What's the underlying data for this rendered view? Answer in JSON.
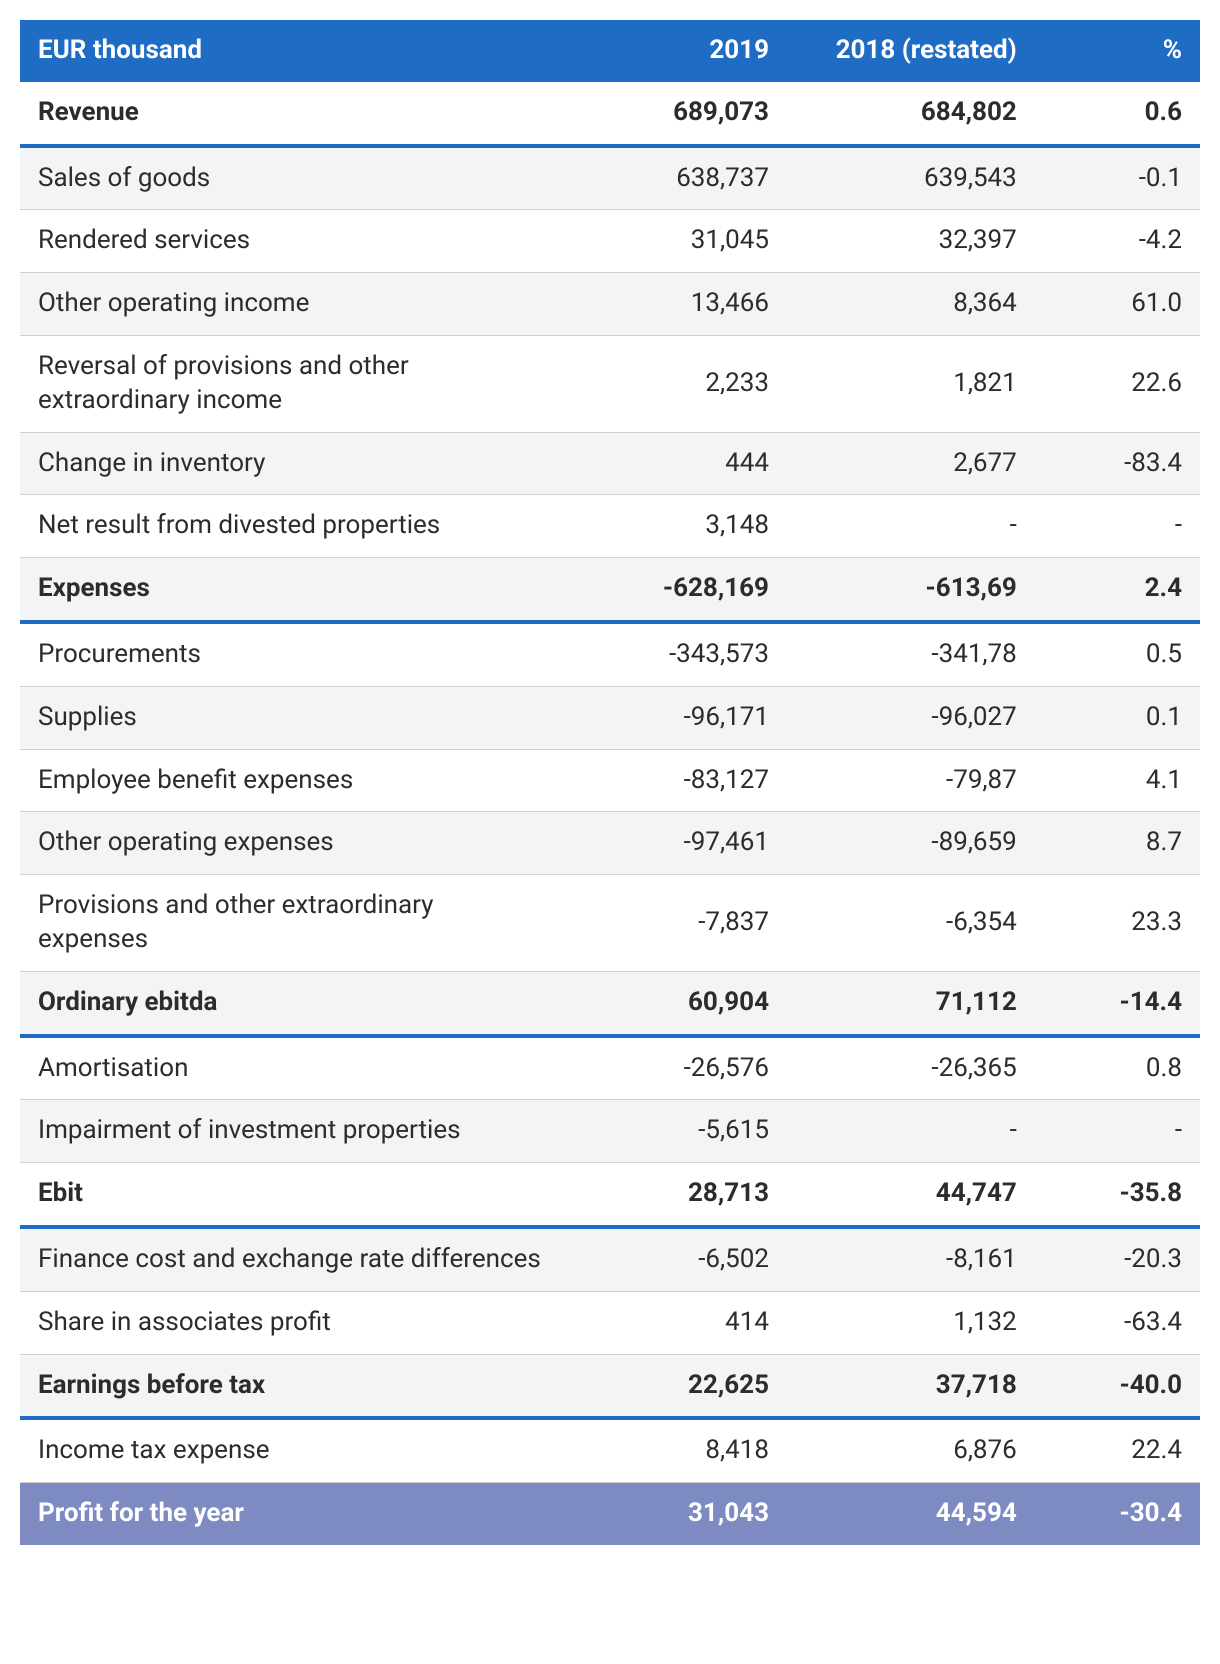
{
  "colors": {
    "header_bg": "#1f6cc4",
    "footer_bg": "#7d8bc2",
    "accent_border": "#1f6cc4",
    "row_border": "#d0d0d0",
    "zebra_bg": "#f4f4f4",
    "text": "#2c2c2c",
    "header_text": "#ffffff"
  },
  "columns": {
    "label": "EUR thousand",
    "v1": "2019",
    "v2": "2018 (restated)",
    "pct": "%"
  },
  "rows": [
    {
      "label": "Revenue",
      "v1": "689,073",
      "v2": "684,802",
      "pct": "0.6",
      "bold": true,
      "zebra": false,
      "border": "none"
    },
    {
      "label": "Sales of goods",
      "v1": "638,737",
      "v2": "639,543",
      "pct": "-0.1",
      "bold": false,
      "zebra": true,
      "border": "accent"
    },
    {
      "label": "Rendered services",
      "v1": "31,045",
      "v2": "32,397",
      "pct": "-4.2",
      "bold": false,
      "zebra": false,
      "border": "thin"
    },
    {
      "label": "Other operating income",
      "v1": "13,466",
      "v2": "8,364",
      "pct": "61.0",
      "bold": false,
      "zebra": true,
      "border": "thin"
    },
    {
      "label": "Reversal of provisions and other extraordinary income",
      "v1": "2,233",
      "v2": "1,821",
      "pct": "22.6",
      "bold": false,
      "zebra": false,
      "border": "thin"
    },
    {
      "label": "Change in inventory",
      "v1": "444",
      "v2": "2,677",
      "pct": "-83.4",
      "bold": false,
      "zebra": true,
      "border": "thin"
    },
    {
      "label": "Net result from divested properties",
      "v1": "3,148",
      "v2": "-",
      "pct": "-",
      "bold": false,
      "zebra": false,
      "border": "thin"
    },
    {
      "label": "Expenses",
      "v1": "-628,169",
      "v2": "-613,69",
      "pct": "2.4",
      "bold": true,
      "zebra": true,
      "border": "thin"
    },
    {
      "label": "Procurements",
      "v1": "-343,573",
      "v2": "-341,78",
      "pct": "0.5",
      "bold": false,
      "zebra": false,
      "border": "accent"
    },
    {
      "label": "Supplies",
      "v1": "-96,171",
      "v2": "-96,027",
      "pct": "0.1",
      "bold": false,
      "zebra": true,
      "border": "thin"
    },
    {
      "label": "Employee benefit expenses",
      "v1": "-83,127",
      "v2": "-79,87",
      "pct": "4.1",
      "bold": false,
      "zebra": false,
      "border": "thin"
    },
    {
      "label": "Other operating expenses",
      "v1": "-97,461",
      "v2": "-89,659",
      "pct": "8.7",
      "bold": false,
      "zebra": true,
      "border": "thin"
    },
    {
      "label": "Provisions and other extraordinary expenses",
      "v1": "-7,837",
      "v2": "-6,354",
      "pct": "23.3",
      "bold": false,
      "zebra": false,
      "border": "thin"
    },
    {
      "label": "Ordinary ebitda",
      "v1": "60,904",
      "v2": "71,112",
      "pct": "-14.4",
      "bold": true,
      "zebra": true,
      "border": "thin"
    },
    {
      "label": "Amortisation",
      "v1": "-26,576",
      "v2": "-26,365",
      "pct": "0.8",
      "bold": false,
      "zebra": false,
      "border": "accent"
    },
    {
      "label": "Impairment of investment properties",
      "v1": "-5,615",
      "v2": "-",
      "pct": "-",
      "bold": false,
      "zebra": true,
      "border": "thin"
    },
    {
      "label": "Ebit",
      "v1": "28,713",
      "v2": "44,747",
      "pct": "-35.8",
      "bold": true,
      "zebra": false,
      "border": "thin"
    },
    {
      "label": "Finance cost and exchange rate differences",
      "v1": "-6,502",
      "v2": "-8,161",
      "pct": "-20.3",
      "bold": false,
      "zebra": true,
      "border": "accent"
    },
    {
      "label": "Share in associates profit",
      "v1": "414",
      "v2": "1,132",
      "pct": "-63.4",
      "bold": false,
      "zebra": false,
      "border": "thin"
    },
    {
      "label": "Earnings before tax",
      "v1": "22,625",
      "v2": "37,718",
      "pct": "-40.0",
      "bold": true,
      "zebra": true,
      "border": "thin"
    },
    {
      "label": "Income tax expense",
      "v1": "8,418",
      "v2": "6,876",
      "pct": "22.4",
      "bold": false,
      "zebra": false,
      "border": "accent"
    }
  ],
  "footer": {
    "label": "Profit for the year",
    "v1": "31,043",
    "v2": "44,594",
    "pct": "-30.4"
  }
}
